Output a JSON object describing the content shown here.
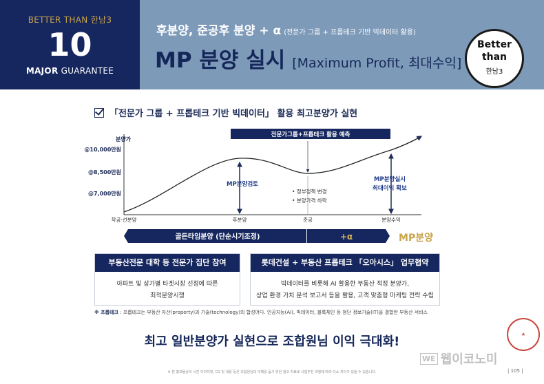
{
  "header": {
    "better_than": "BETTER THAN 한남3",
    "number": "10",
    "major": "MAJOR",
    "guarantee": "GUARANTEE",
    "subtitle": "후분양, 준공후 분양 + α",
    "subtitle_paren": "(전문가 그룹 + 프롭테크 기반 빅데이터 활용)",
    "main_title": "MP 분양 실시",
    "main_bracket": "[Maximum Profit, 최대수익]"
  },
  "badge": {
    "line1": "Better",
    "line2": "than",
    "line3": "한남3"
  },
  "section_title": "「전문가 그룹 + 프롭테크 기반 빅데이터」 활용 최고분양가 실현",
  "chart_data": {
    "type": "line",
    "ylabel": "분양가",
    "yticks": [
      "@10,000만원",
      "@8,500만원",
      "@7,000만원"
    ],
    "x": [
      "착공·선분양",
      "후분양",
      "준공",
      "분양수익"
    ],
    "prediction_label": "전문가그룹+프롭테크 활용 예측",
    "annotations": {
      "peak": "MP분양검토",
      "trough_bullets": [
        "• 정부정책 변경",
        "• 분양가격 하락"
      ],
      "final_line1": "MP분양실시",
      "final_line2": "최대이익 확보"
    },
    "phases": [
      {
        "label": "골든타임분양 (단순시기조정)"
      },
      {
        "label": "+α"
      },
      {
        "label": "MP분양"
      }
    ]
  },
  "boxes": [
    {
      "title": "부동산전문 대학 등 전문가 집단 참여",
      "lines": [
        "아파트 및 상가별 타겟시장 선정에 따른",
        "최적분양시행"
      ]
    },
    {
      "title": "롯데건설 + 부동산 프롭테크 「오아시스」 업무협약",
      "lines": [
        "빅데이터를 비롯해 AI 활용한 부동산 적정 분양가,",
        "상업 환경 가치 분석 보고서 등을 활용, 고객 맞춤형 마케팅 전략 수립"
      ]
    }
  ],
  "note": {
    "label": "※ 프롭테크",
    "text": " : 프롭테크는 부동산 자산(property)과 기술(technology)의 합성어다. 인공지능(AI), 빅데이터, 블록체인 등 첨단 정보기술(IT)을 결합한 부동산 서비스"
  },
  "slogan": "최고 일반분양가 실현으로 조합원님 이익 극대화!",
  "footer": "※ 본 홍보물상의 사진 이미지컷, CG 및 내용 등은 조합원님의 이해를 돕기 위한 참고 자료로 사업추진 과정에 따라 다소 차이가 있을 수 있습니다.",
  "page": "| 105 |",
  "watermark": {
    "we": "WE",
    "text": "웹이코노미"
  }
}
